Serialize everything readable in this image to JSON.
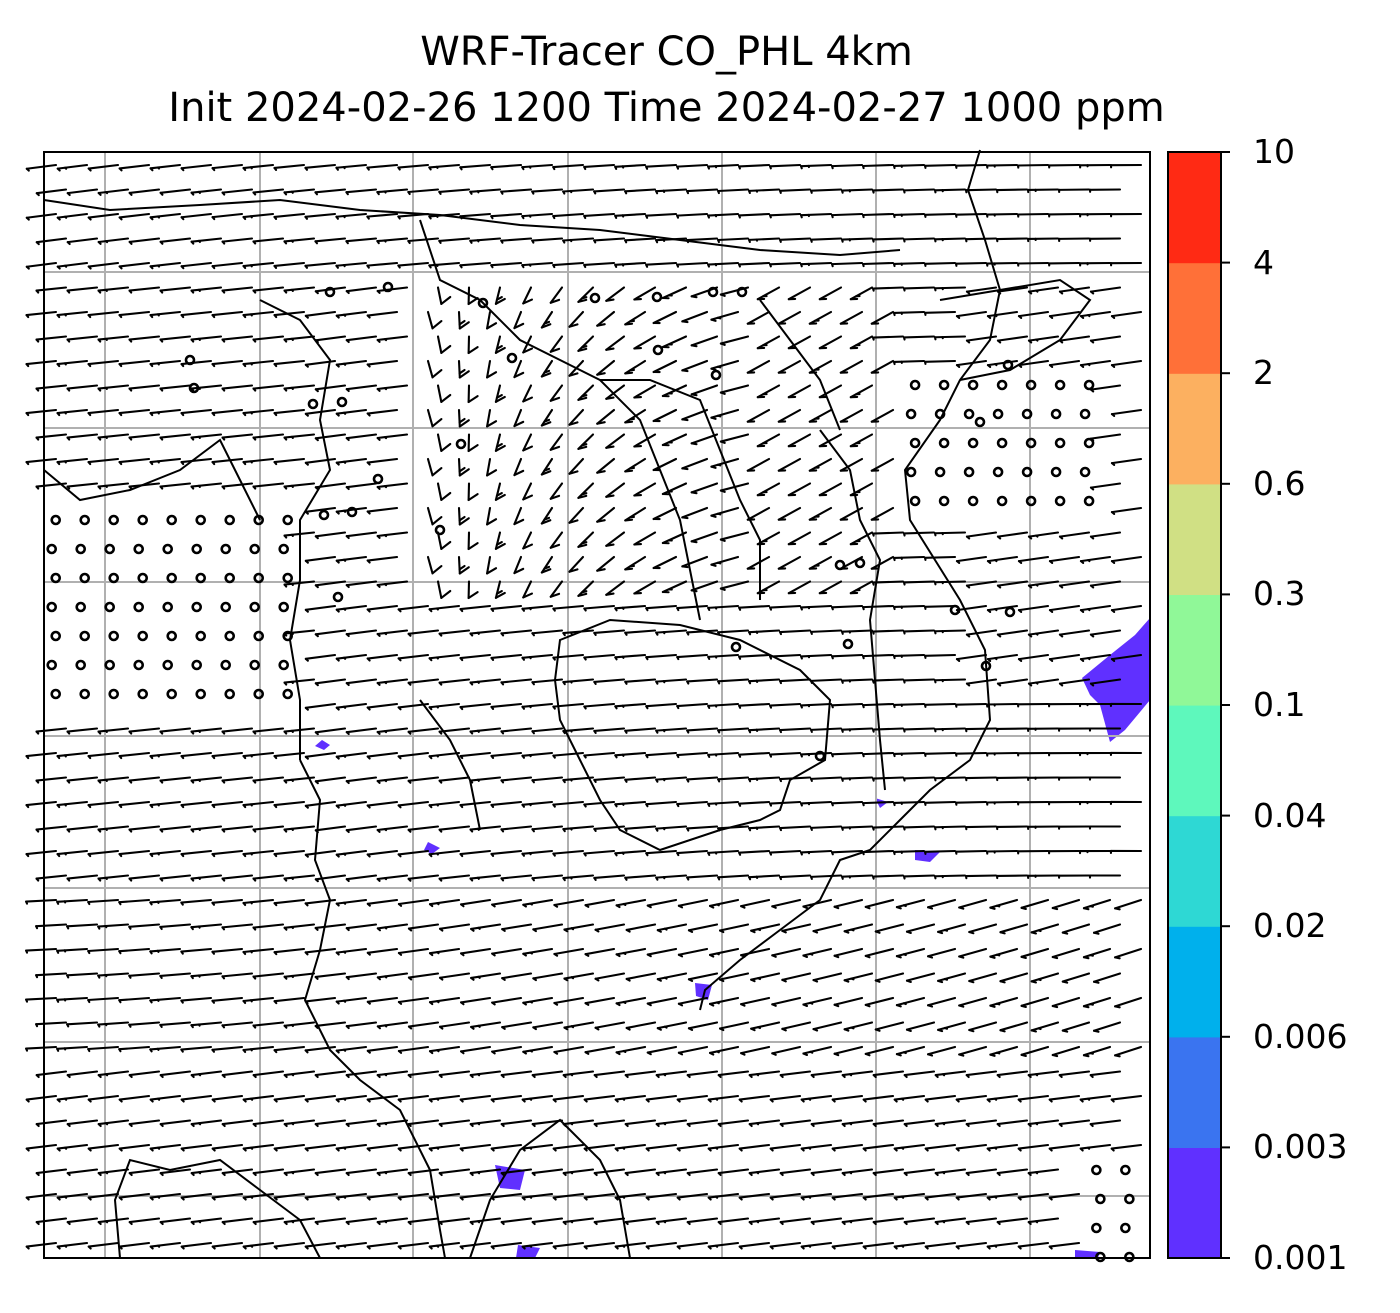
{
  "chart_data": {
    "type": "heatmap",
    "title_line1": "WRF-Tracer CO_PHL 4km",
    "title_line2": "Init 2024-02-26 1200 Time 2024-02-27 1000 ppm",
    "colorbar": {
      "levels": [
        "0.001",
        "0.003",
        "0.006",
        "0.02",
        "0.04",
        "0.1",
        "0.3",
        "0.6",
        "2",
        "4",
        "10"
      ],
      "colors": [
        "#6030ff",
        "#3a74f0",
        "#00b0ec",
        "#2ed8d4",
        "#5ef8bc",
        "#90f898",
        "#d0e084",
        "#fcb060",
        "#ff7038",
        "#ff2a14"
      ]
    },
    "features": [
      "tracer concentration contours",
      "wind barbs",
      "coastlines and state borders",
      "lat/lon gridlines"
    ],
    "grid": true
  },
  "colors": {
    "coast": "#000000",
    "gridline": "#b0b0b0",
    "barb": "#000000",
    "tracer_low": "#6030ff"
  }
}
